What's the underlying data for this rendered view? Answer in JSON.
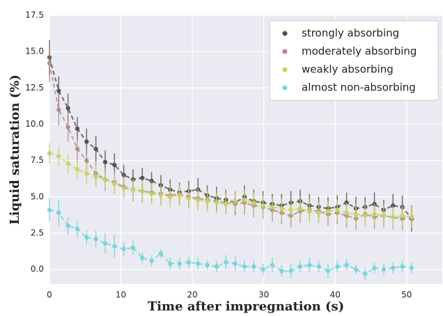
{
  "chart_data": {
    "type": "line",
    "xlabel": "Time after impregnation (s)",
    "ylabel": "Liquid saturation (%)",
    "x": [
      0,
      1.3,
      2.6,
      3.9,
      5.2,
      6.5,
      7.8,
      9.1,
      10.4,
      11.7,
      13,
      14.3,
      15.6,
      16.9,
      18.2,
      19.5,
      20.8,
      22.1,
      23.4,
      24.7,
      26,
      27.3,
      28.6,
      29.9,
      31.2,
      32.5,
      33.8,
      35.1,
      36.4,
      37.7,
      39,
      40.3,
      41.6,
      42.9,
      44.2,
      45.5,
      46.8,
      48.1,
      49.4,
      50.7
    ],
    "xlim": [
      0,
      55
    ],
    "xticks": [
      0,
      10,
      20,
      30,
      40,
      50
    ],
    "ylim": [
      -1,
      17.5
    ],
    "yticks": [
      {
        "value": 0,
        "label": "0.0"
      },
      {
        "value": 2.5,
        "label": "2.5"
      },
      {
        "value": 5,
        "label": "5.0"
      },
      {
        "value": 7.5,
        "label": "7.5"
      },
      {
        "value": 10,
        "label": "10.0"
      },
      {
        "value": 12.5,
        "label": "12.5"
      },
      {
        "value": 15,
        "label": "15.0"
      },
      {
        "value": 17.5,
        "label": "17.5"
      }
    ],
    "grid": true,
    "legend": "upper right",
    "series": [
      {
        "name": "strongly absorbing",
        "color": "#4d4d4d",
        "values": [
          14.6,
          12.3,
          11.1,
          9.7,
          8.8,
          8.3,
          7.4,
          7.2,
          6.5,
          6.2,
          6.3,
          6.1,
          5.8,
          5.5,
          5.3,
          5.4,
          5.5,
          5.1,
          4.9,
          4.8,
          4.6,
          5.0,
          4.7,
          4.6,
          4.5,
          4.4,
          4.6,
          4.7,
          4.4,
          4.3,
          4.2,
          4.3,
          4.6,
          4.2,
          4.3,
          4.5,
          4.1,
          4.4,
          4.3,
          3.5
        ],
        "errors": [
          1.2,
          1.0,
          1.0,
          0.8,
          0.9,
          0.9,
          0.8,
          0.8,
          0.7,
          0.7,
          0.7,
          0.6,
          0.7,
          0.7,
          0.7,
          0.7,
          0.8,
          0.7,
          0.8,
          0.7,
          0.8,
          0.8,
          0.8,
          0.8,
          0.7,
          0.8,
          0.8,
          0.8,
          0.8,
          0.7,
          0.8,
          0.8,
          0.7,
          0.8,
          0.7,
          0.8,
          0.7,
          0.8,
          0.8,
          0.9
        ]
      },
      {
        "name": "moderately absorbing",
        "color": "#b08a7e",
        "values": [
          14.2,
          11.0,
          9.8,
          8.3,
          7.5,
          6.6,
          6.2,
          6.0,
          5.7,
          5.5,
          5.4,
          5.3,
          5.2,
          5.1,
          5.2,
          5.0,
          4.9,
          4.8,
          4.7,
          4.6,
          4.5,
          4.6,
          4.4,
          4.3,
          4.1,
          3.9,
          3.7,
          4.0,
          4.1,
          4.0,
          3.8,
          3.9,
          3.7,
          3.5,
          3.8,
          3.6,
          3.7,
          3.6,
          3.5,
          3.6
        ],
        "errors": [
          1.3,
          1.1,
          1.0,
          0.9,
          0.9,
          0.9,
          0.8,
          0.8,
          0.8,
          0.8,
          0.8,
          0.8,
          0.8,
          0.8,
          0.8,
          0.8,
          0.8,
          0.8,
          0.8,
          0.8,
          0.8,
          0.8,
          0.8,
          0.8,
          0.8,
          0.8,
          0.8,
          0.8,
          0.8,
          0.8,
          0.8,
          0.8,
          0.8,
          0.8,
          0.8,
          0.8,
          0.8,
          0.8,
          0.8,
          0.8
        ]
      },
      {
        "name": "weakly absorbing",
        "color": "#c5d45a",
        "values": [
          8.0,
          7.8,
          7.3,
          6.9,
          6.6,
          6.4,
          6.2,
          5.9,
          5.6,
          5.5,
          5.4,
          5.2,
          5.1,
          5.0,
          5.1,
          4.9,
          4.8,
          4.7,
          4.6,
          4.5,
          4.7,
          4.8,
          4.6,
          4.4,
          4.3,
          4.2,
          4.1,
          4.2,
          4.0,
          3.9,
          4.0,
          4.1,
          3.9,
          3.8,
          3.7,
          3.8,
          3.7,
          3.6,
          3.7,
          3.6
        ],
        "errors": [
          0.7,
          0.7,
          0.7,
          0.7,
          0.7,
          0.7,
          0.7,
          0.7,
          0.7,
          0.7,
          0.7,
          0.7,
          0.7,
          0.7,
          0.7,
          0.7,
          0.7,
          0.7,
          0.7,
          0.7,
          0.7,
          0.7,
          0.7,
          0.7,
          0.7,
          0.7,
          0.7,
          0.7,
          0.7,
          0.7,
          0.7,
          0.7,
          0.7,
          0.7,
          0.7,
          0.7,
          0.7,
          0.7,
          0.7,
          0.7
        ]
      },
      {
        "name": "almost non-absorbing",
        "color": "#6fd6d8",
        "values": [
          4.1,
          3.9,
          3.0,
          2.8,
          2.2,
          2.1,
          1.8,
          1.6,
          1.4,
          1.5,
          0.8,
          0.6,
          1.1,
          0.4,
          0.4,
          0.5,
          0.4,
          0.3,
          0.2,
          0.5,
          0.4,
          0.2,
          0.2,
          0.0,
          0.3,
          -0.1,
          -0.1,
          0.2,
          0.3,
          0.2,
          -0.1,
          0.2,
          0.3,
          0.0,
          -0.3,
          0.1,
          0.0,
          0.1,
          0.2,
          0.1
        ],
        "errors": [
          0.8,
          0.9,
          0.6,
          0.6,
          0.5,
          0.6,
          0.7,
          0.8,
          0.5,
          0.5,
          0.4,
          0.4,
          0.3,
          0.4,
          0.4,
          0.4,
          0.4,
          0.3,
          0.4,
          0.5,
          0.5,
          0.4,
          0.4,
          0.4,
          0.5,
          0.4,
          0.5,
          0.4,
          0.5,
          0.4,
          0.5,
          0.4,
          0.4,
          0.3,
          0.4,
          0.4,
          0.4,
          0.4,
          0.4,
          0.4
        ]
      }
    ]
  }
}
